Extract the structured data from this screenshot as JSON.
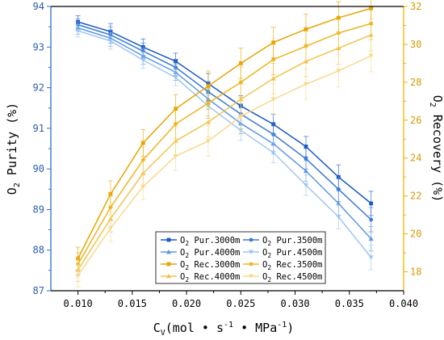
{
  "chart_data": {
    "type": "line",
    "x": [
      0.01,
      0.013,
      0.016,
      0.019,
      0.022,
      0.025,
      0.028,
      0.031,
      0.034,
      0.037
    ],
    "xlim": [
      0.0075,
      0.04
    ],
    "xticks": [
      0.01,
      0.015,
      0.02,
      0.025,
      0.03,
      0.035,
      0.04
    ],
    "xtick_labels": [
      "0.010",
      "0.015",
      "0.020",
      "0.025",
      "0.030",
      "0.035",
      "0.040"
    ],
    "xlabel": "C",
    "xlabel_sub": "V",
    "xlabel_units": "(mol • s",
    "xlabel_sup1": "-1",
    "xlabel_mid": " • MPa",
    "xlabel_sup2": "-1",
    "xlabel_end": ")",
    "y_left": {
      "label": "O",
      "label_sub": "2",
      "label_rest": " Purity  (%)",
      "lim": [
        87,
        94
      ],
      "ticks": [
        87,
        88,
        89,
        90,
        91,
        92,
        93,
        94
      ],
      "color": "#2d6fd0"
    },
    "y_right": {
      "label": "O",
      "label_sub": "2",
      "label_rest": " Recovery  (%)",
      "lim": [
        17,
        32
      ],
      "ticks": [
        18,
        20,
        22,
        24,
        26,
        28,
        30,
        32
      ],
      "color": "#f0b400"
    },
    "grid": false,
    "legend_placement": "lower-right",
    "series": [
      {
        "name_pre": "O",
        "name_sub": "2",
        "name_post": " Pur.3000m",
        "axis": "left",
        "color": "#1a58c4",
        "marker": "square",
        "values": [
          93.62,
          93.38,
          93.0,
          92.65,
          92.1,
          91.55,
          91.1,
          90.55,
          89.8,
          89.15
        ],
        "errors": [
          0.15,
          0.2,
          0.2,
          0.2,
          0.25,
          0.25,
          0.25,
          0.25,
          0.3,
          0.3
        ]
      },
      {
        "name_pre": "O",
        "name_sub": "2",
        "name_post": " Pur.3500m",
        "axis": "left",
        "color": "#3a7ad6",
        "marker": "circle",
        "values": [
          93.55,
          93.3,
          92.9,
          92.5,
          91.9,
          91.35,
          90.85,
          90.25,
          89.5,
          88.75
        ],
        "errors": [
          0.15,
          0.2,
          0.2,
          0.2,
          0.25,
          0.25,
          0.25,
          0.25,
          0.3,
          0.3
        ]
      },
      {
        "name_pre": "O",
        "name_sub": "2",
        "name_post": " Pur.4000m",
        "axis": "left",
        "color": "#5d97e6",
        "marker": "triangle",
        "values": [
          93.47,
          93.22,
          92.78,
          92.38,
          91.72,
          91.12,
          90.62,
          89.95,
          89.15,
          88.28
        ],
        "errors": [
          0.15,
          0.2,
          0.2,
          0.2,
          0.25,
          0.25,
          0.25,
          0.25,
          0.3,
          0.3
        ]
      },
      {
        "name_pre": "O",
        "name_sub": "2",
        "name_post": " Pur.4500m",
        "axis": "left",
        "color": "#9ec6f2",
        "marker": "triangle-down",
        "values": [
          93.4,
          93.15,
          92.68,
          92.25,
          91.55,
          90.95,
          90.4,
          89.6,
          88.82,
          87.82
        ],
        "errors": [
          0.15,
          0.2,
          0.2,
          0.2,
          0.25,
          0.25,
          0.25,
          0.25,
          0.3,
          0.3
        ]
      },
      {
        "name_pre": "O",
        "name_sub": "2",
        "name_post": " Rec.3000m",
        "axis": "right",
        "color": "#e8a400",
        "marker": "square",
        "values": [
          18.7,
          22.1,
          24.8,
          26.6,
          27.8,
          29.0,
          30.1,
          30.8,
          31.4,
          31.9
        ],
        "errors": [
          0.6,
          0.7,
          0.7,
          0.75,
          0.8,
          0.8,
          0.8,
          0.8,
          0.85,
          0.85
        ]
      },
      {
        "name_pre": "O",
        "name_sub": "2",
        "name_post": " Rec.3500m",
        "axis": "right",
        "color": "#edb51e",
        "marker": "circle",
        "values": [
          18.4,
          21.4,
          23.9,
          25.8,
          26.9,
          28.0,
          29.2,
          29.9,
          30.6,
          31.1
        ],
        "errors": [
          0.6,
          0.7,
          0.7,
          0.75,
          0.8,
          0.8,
          0.8,
          0.8,
          0.85,
          0.85
        ]
      },
      {
        "name_pre": "O",
        "name_sub": "2",
        "name_post": " Rec.4000m",
        "axis": "right",
        "color": "#f2c450",
        "marker": "triangle",
        "values": [
          18.1,
          20.8,
          23.2,
          24.9,
          25.9,
          27.1,
          28.2,
          29.1,
          29.8,
          30.5
        ],
        "errors": [
          0.6,
          0.7,
          0.7,
          0.75,
          0.8,
          0.8,
          0.8,
          0.8,
          0.85,
          0.85
        ]
      },
      {
        "name_pre": "O",
        "name_sub": "2",
        "name_post": " Rec.4500m",
        "axis": "right",
        "color": "#f8d98c",
        "marker": "triangle-down",
        "values": [
          17.8,
          20.3,
          22.5,
          24.1,
          24.9,
          26.2,
          27.1,
          27.9,
          28.6,
          29.4
        ],
        "errors": [
          0.6,
          0.7,
          0.7,
          0.75,
          0.8,
          0.8,
          0.8,
          0.8,
          0.85,
          0.85
        ]
      }
    ]
  }
}
